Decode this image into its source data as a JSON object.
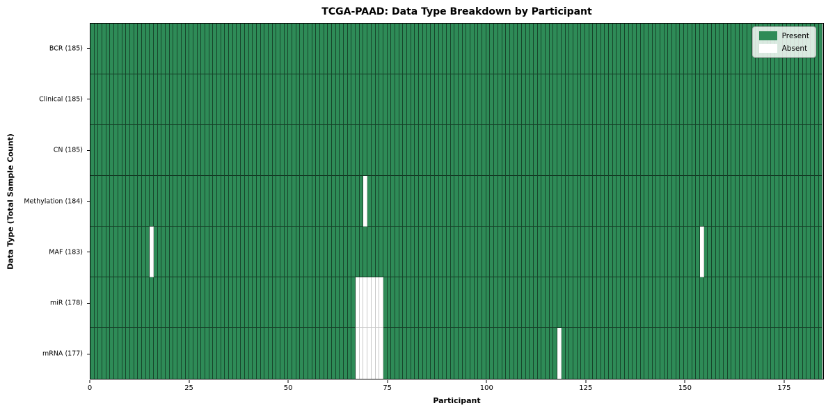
{
  "chart_data": {
    "type": "heatmap",
    "title": "TCGA-PAAD: Data Type Breakdown by Participant",
    "xlabel": "Participant",
    "ylabel": "Data Type (Total Sample Count)",
    "n_participants": 185,
    "x_range": [
      0,
      185
    ],
    "x_ticks": [
      0,
      25,
      50,
      75,
      100,
      125,
      150,
      175
    ],
    "grid": true,
    "legend": {
      "position": "upper right",
      "items": [
        {
          "label": "Present",
          "color": "#2e8b57"
        },
        {
          "label": "Absent",
          "color": "#ffffff"
        }
      ]
    },
    "rows": [
      {
        "label": "BCR (185)",
        "data_type": "BCR",
        "total_samples": 185,
        "absent": []
      },
      {
        "label": "Clinical (185)",
        "data_type": "Clinical",
        "total_samples": 185,
        "absent": []
      },
      {
        "label": "CN (185)",
        "data_type": "CN",
        "total_samples": 185,
        "absent": []
      },
      {
        "label": "Methylation (184)",
        "data_type": "Methylation",
        "total_samples": 184,
        "absent": [
          69
        ]
      },
      {
        "label": "MAF (183)",
        "data_type": "MAF",
        "total_samples": 183,
        "absent": [
          15,
          154
        ]
      },
      {
        "label": "miR (178)",
        "data_type": "miR",
        "total_samples": 178,
        "absent": [
          67,
          68,
          69,
          70,
          71,
          72,
          73
        ]
      },
      {
        "label": "mRNA (177)",
        "data_type": "mRNA",
        "total_samples": 177,
        "absent": [
          67,
          68,
          69,
          70,
          71,
          72,
          73,
          118
        ]
      }
    ],
    "colors": {
      "present": "#2e8b57",
      "absent": "#ffffff",
      "cell_edge_on_present": "rgba(0,0,0,0.5)",
      "row_separator_on_present": "rgba(0,0,0,0.6)",
      "cell_edge_on_absent": "#c8c8c8",
      "spine": "#000000"
    }
  }
}
